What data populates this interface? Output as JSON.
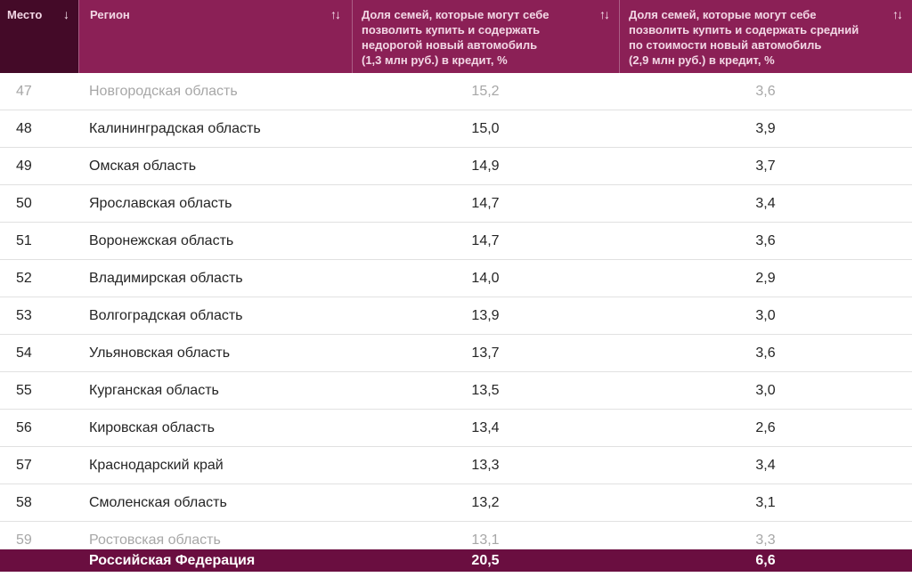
{
  "table": {
    "columns": [
      {
        "label": "Место",
        "sort_icon": "↓"
      },
      {
        "label": "Регион",
        "sort_icon": "↑↓"
      },
      {
        "label": "Доля семей, которые могут себе\nпозволить купить и содержать\nнедорогой новый автомобиль\n(1,3 млн руб.) в кредит, %",
        "sort_icon": "↑↓"
      },
      {
        "label": "Доля семей, которые могут себе\nпозволить купить и содержать средний\nпо стоимости новый автомобиль\n(2,9 млн руб.) в кредит, %",
        "sort_icon": "↑↓"
      }
    ],
    "rows": [
      {
        "rank": "47",
        "region": "Новгородская область",
        "cheap_car_share": "15,2",
        "mid_car_share": "3,6",
        "muted": true
      },
      {
        "rank": "48",
        "region": "Калининградская область",
        "cheap_car_share": "15,0",
        "mid_car_share": "3,9",
        "muted": false
      },
      {
        "rank": "49",
        "region": "Омская область",
        "cheap_car_share": "14,9",
        "mid_car_share": "3,7",
        "muted": false
      },
      {
        "rank": "50",
        "region": "Ярославская область",
        "cheap_car_share": "14,7",
        "mid_car_share": "3,4",
        "muted": false
      },
      {
        "rank": "51",
        "region": "Воронежская область",
        "cheap_car_share": "14,7",
        "mid_car_share": "3,6",
        "muted": false
      },
      {
        "rank": "52",
        "region": "Владимирская область",
        "cheap_car_share": "14,0",
        "mid_car_share": "2,9",
        "muted": false
      },
      {
        "rank": "53",
        "region": "Волгоградская область",
        "cheap_car_share": "13,9",
        "mid_car_share": "3,0",
        "muted": false
      },
      {
        "rank": "54",
        "region": "Ульяновская область",
        "cheap_car_share": "13,7",
        "mid_car_share": "3,6",
        "muted": false
      },
      {
        "rank": "55",
        "region": "Курганская область",
        "cheap_car_share": "13,5",
        "mid_car_share": "3,0",
        "muted": false
      },
      {
        "rank": "56",
        "region": "Кировская область",
        "cheap_car_share": "13,4",
        "mid_car_share": "2,6",
        "muted": false
      },
      {
        "rank": "57",
        "region": "Краснодарский край",
        "cheap_car_share": "13,3",
        "mid_car_share": "3,4",
        "muted": false
      },
      {
        "rank": "58",
        "region": "Смоленская область",
        "cheap_car_share": "13,2",
        "mid_car_share": "3,1",
        "muted": false
      },
      {
        "rank": "59",
        "region": "Ростовская область",
        "cheap_car_share": "13,1",
        "mid_car_share": "3,3",
        "muted": true
      }
    ],
    "footer": {
      "region": "Российская Федерация",
      "cheap_car_share": "20,5",
      "mid_car_share": "6,6"
    }
  },
  "colors": {
    "header_bg": "#8b2056",
    "place_header_bg": "#440a28",
    "footer_bg": "#6a0e40",
    "header_text": "#f2d7e5",
    "body_text": "#252525",
    "muted_text": "#a7a7a7",
    "row_divider": "#e1e1e1"
  }
}
